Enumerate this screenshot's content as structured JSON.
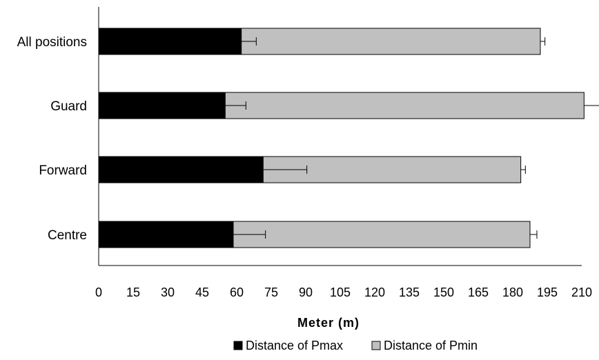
{
  "chart_data": {
    "type": "bar",
    "orientation": "horizontal",
    "stacked": true,
    "categories": [
      "All positions",
      "Guard",
      "Forward",
      "Centre"
    ],
    "series": [
      {
        "name": "Distance of Pmax",
        "color": "#000000",
        "values": [
          62,
          55,
          71.5,
          58.5
        ],
        "error": [
          6.5,
          9,
          19,
          14
        ]
      },
      {
        "name": "Distance of Pmin",
        "color": "#c0c0c0",
        "values": [
          130,
          156,
          112,
          129
        ],
        "error": [
          2,
          7.5,
          2,
          3
        ]
      }
    ],
    "xlabel": "Meter (m)",
    "ylabel": "",
    "xlim": [
      0,
      210
    ],
    "xticks": [
      "0",
      "15",
      "30",
      "45",
      "60",
      "75",
      "90",
      "105",
      "120",
      "135",
      "150",
      "165",
      "180",
      "195",
      "210"
    ],
    "legend_position": "bottom",
    "grid": false
  }
}
